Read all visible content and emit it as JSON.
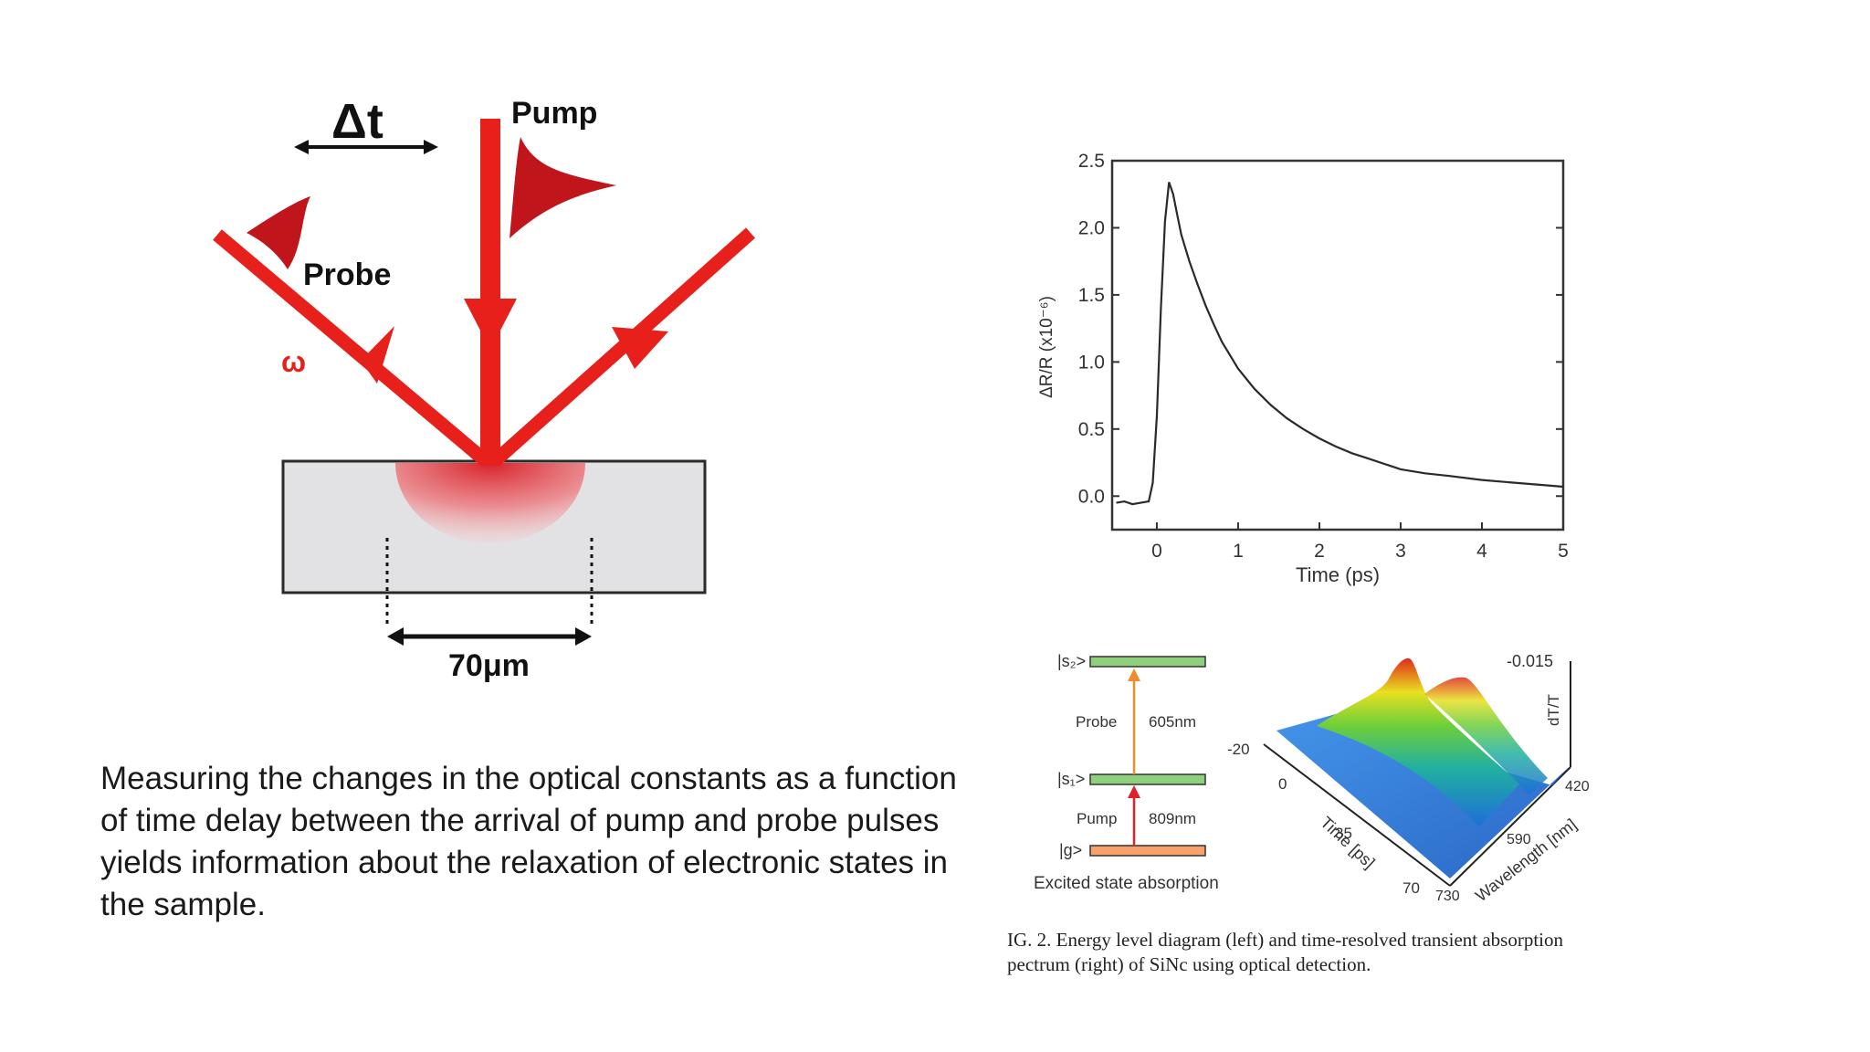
{
  "diagram": {
    "delay_label": "Δt",
    "pump_label": "Pump",
    "probe_label": "Probe",
    "omega_label": "ω",
    "spot_size_label": "70μm",
    "beam_color": "#e8201c",
    "pulse_color": "#c0151b",
    "sample_color": "#e2e2e4"
  },
  "decay_plot": {
    "xlabel": "Time (ps)",
    "ylabel": "ΔR/R (x10⁻⁶)",
    "x_ticks": [
      "0",
      "1",
      "2",
      "3",
      "4",
      "5"
    ],
    "y_ticks": [
      "0.0",
      "0.5",
      "1.0",
      "1.5",
      "2.0",
      "2.5"
    ]
  },
  "chart_data": {
    "type": "line",
    "xlabel": "Time (ps)",
    "ylabel": "ΔR/R (x10⁻⁶)",
    "xlim": [
      -0.55,
      5
    ],
    "ylim": [
      -0.25,
      2.5
    ],
    "series": [
      {
        "x": [
          -0.5,
          -0.4,
          -0.3,
          -0.2,
          -0.1,
          -0.05,
          0.0,
          0.05,
          0.1,
          0.15,
          0.2,
          0.25,
          0.3,
          0.4,
          0.5,
          0.6,
          0.7,
          0.8,
          1.0,
          1.2,
          1.4,
          1.6,
          1.8,
          2.0,
          2.2,
          2.4,
          2.6,
          2.8,
          3.0,
          3.3,
          3.6,
          4.0,
          4.4,
          4.8,
          5.0
        ],
        "y": [
          -0.05,
          -0.04,
          -0.06,
          -0.05,
          -0.04,
          0.1,
          0.6,
          1.4,
          2.05,
          2.34,
          2.25,
          2.1,
          1.95,
          1.75,
          1.58,
          1.42,
          1.28,
          1.15,
          0.95,
          0.8,
          0.68,
          0.58,
          0.5,
          0.43,
          0.37,
          0.32,
          0.28,
          0.24,
          0.2,
          0.17,
          0.15,
          0.12,
          0.1,
          0.08,
          0.07
        ]
      }
    ]
  },
  "energy": {
    "s2_label": "|s₂>",
    "s1_label": "|s₁>",
    "g_label": "|g>",
    "probe_label": "Probe",
    "probe_nm": "605nm",
    "pump_label": "Pump",
    "pump_nm": "809nm",
    "caption": "Excited state absorption"
  },
  "surface": {
    "dtt_label": "dT/T",
    "dtt_value": "-0.015",
    "time_axis_label": "Time [ps]",
    "time_ticks": [
      "-20",
      "0",
      "35",
      "70"
    ],
    "wavelength_axis_label": "Wavelength [nm]",
    "wavelength_ticks": [
      "730",
      "590",
      "420"
    ]
  },
  "description": "Measuring the changes in the optical constants as a function of time delay between the arrival of pump and probe pulses yields information about the relaxation of electronic states in the sample.",
  "figure_caption": {
    "line1": "IG. 2. Energy level diagram (left) and time-resolved transient absorption",
    "line2": "pectrum (right) of SiNc using optical detection."
  }
}
